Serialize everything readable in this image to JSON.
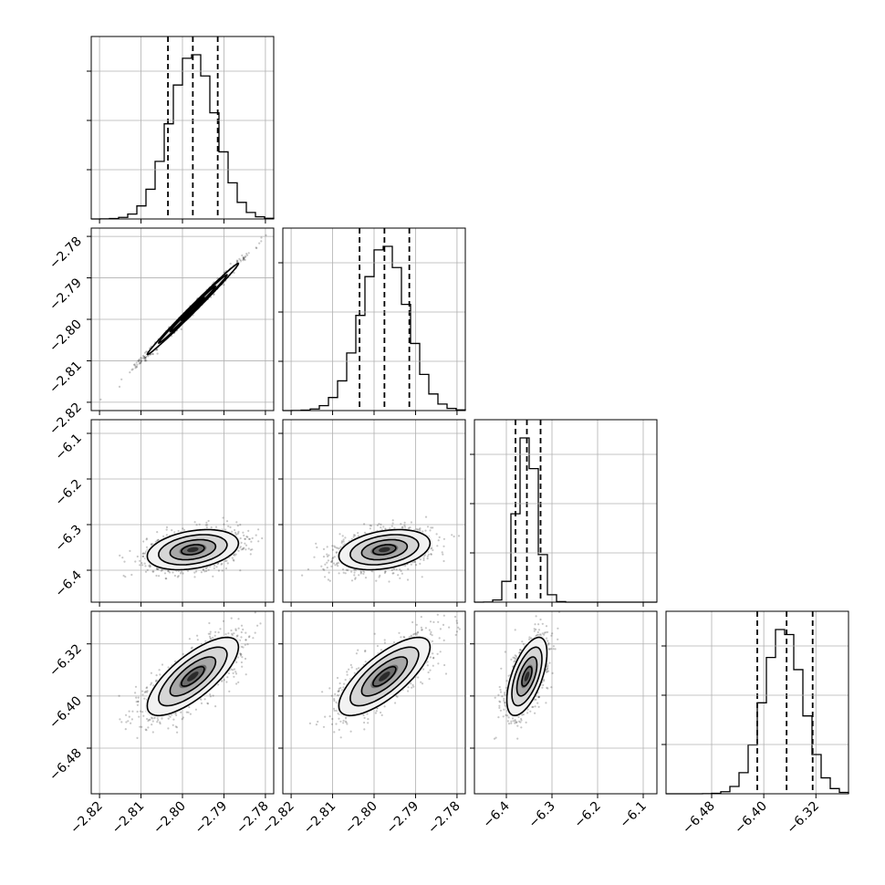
{
  "chart_data": {
    "type": "corner",
    "title": "",
    "grid": true,
    "parameters": [
      {
        "name": "",
        "mean": -2.7975,
        "sd": 0.0055,
        "range": [
          -2.822,
          -2.778
        ],
        "quantiles": [
          -2.8035,
          -2.7975,
          -2.7915
        ],
        "ticks": [
          -2.82,
          -2.81,
          -2.8,
          -2.79,
          -2.78
        ],
        "tick_labels": [
          "−2.82",
          "−2.81",
          "−2.80",
          "−2.79",
          "−2.78"
        ]
      },
      {
        "name": "",
        "mean": -2.7975,
        "sd": 0.0055,
        "range": [
          -2.822,
          -2.778
        ],
        "quantiles": [
          -2.8035,
          -2.7975,
          -2.7915
        ],
        "ticks": [
          -2.82,
          -2.81,
          -2.8,
          -2.79,
          -2.78
        ],
        "tick_labels": [
          "−2.82",
          "−2.81",
          "−2.80",
          "−2.79",
          "−2.78"
        ]
      },
      {
        "name": "",
        "mean": -6.355,
        "sd": 0.022,
        "range": [
          -6.47,
          -6.07
        ],
        "quantiles": [
          -6.38,
          -6.355,
          -6.325
        ],
        "ticks": [
          -6.4,
          -6.3,
          -6.2,
          -6.1
        ],
        "tick_labels": [
          "−6.4",
          "−6.3",
          "−6.2",
          "−6.1"
        ]
      },
      {
        "name": "",
        "mean": -6.37,
        "sd": 0.03,
        "range": [
          -6.55,
          -6.27
        ],
        "quantiles": [
          -6.41,
          -6.365,
          -6.325
        ],
        "ticks": [
          -6.48,
          -6.4,
          -6.32
        ],
        "tick_labels": [
          "−6.48",
          "−6.40",
          "−6.32"
        ]
      }
    ],
    "correlations": [
      [
        1.0,
        0.998,
        0.32,
        0.75
      ],
      [
        0.998,
        1.0,
        0.32,
        0.75
      ],
      [
        0.32,
        0.32,
        1.0,
        0.6
      ],
      [
        0.75,
        0.75,
        0.6,
        1.0
      ]
    ],
    "contour_levels_sigma": [
      0.5,
      1.0,
      1.5,
      2.0
    ]
  }
}
